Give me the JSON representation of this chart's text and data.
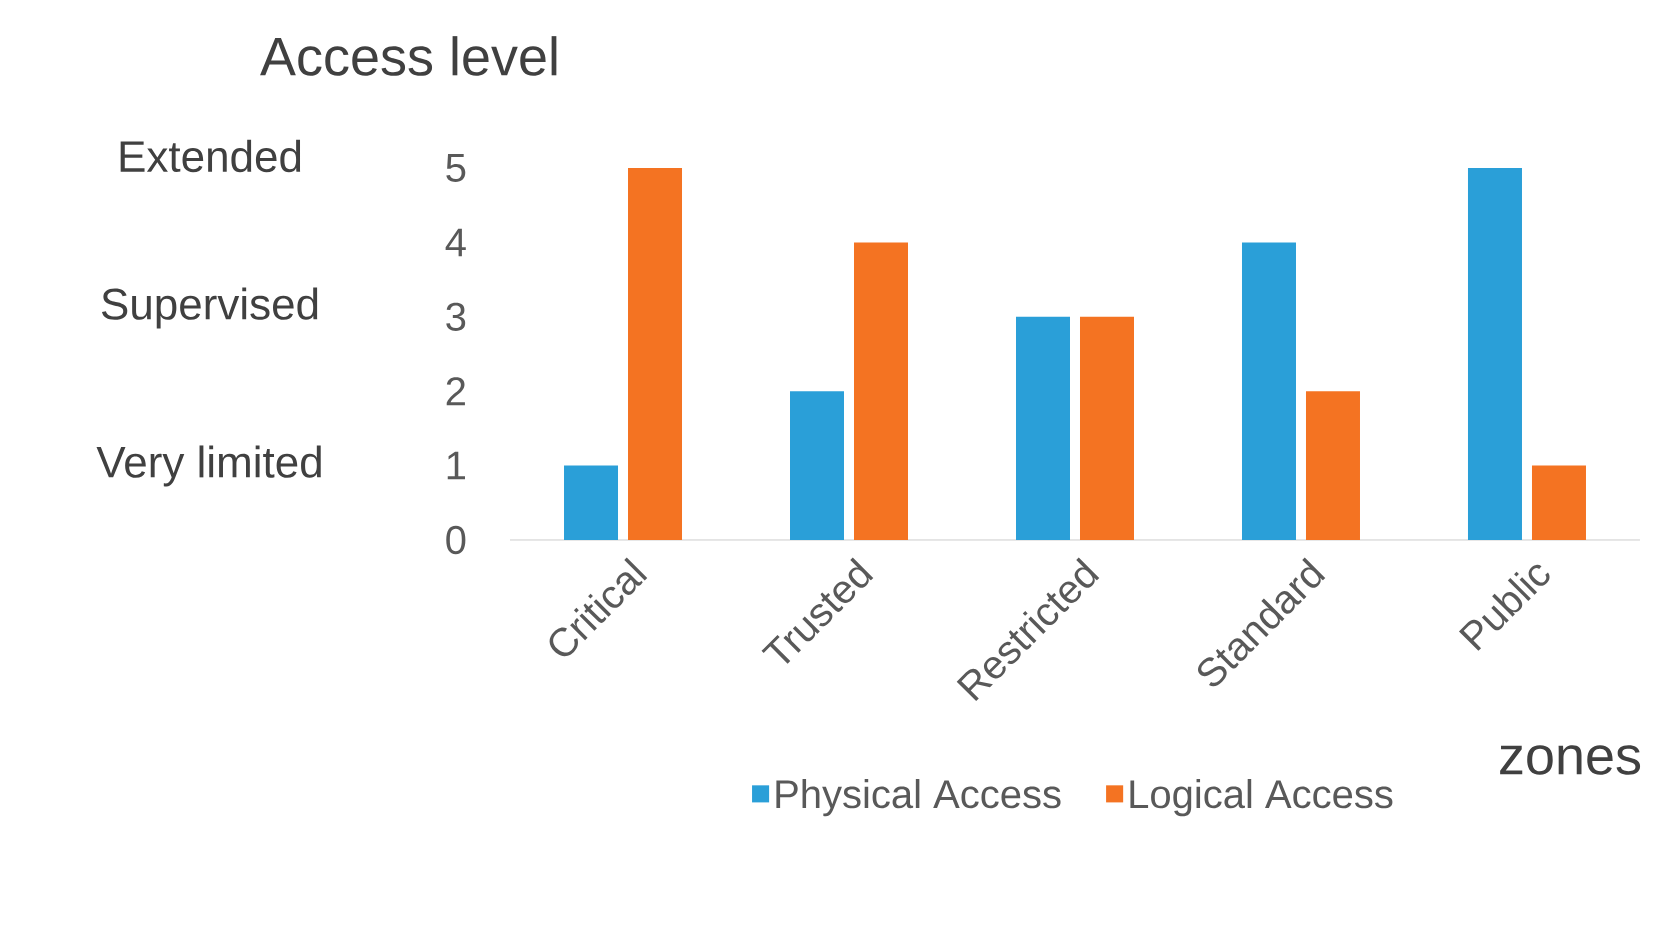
{
  "chart_data": {
    "type": "bar",
    "xlabel": "zones",
    "ylabel": "Access level",
    "categories": [
      "Critical",
      "Trusted",
      "Restricted",
      "Standard",
      "Public"
    ],
    "series": [
      {
        "name": "Physical Access",
        "color": "#2a9fd8",
        "values": [
          1,
          2,
          3,
          4,
          5
        ]
      },
      {
        "name": "Logical Access",
        "color": "#f47322",
        "values": [
          5,
          4,
          3,
          2,
          1
        ]
      }
    ],
    "ylim": [
      0,
      5
    ],
    "yticks": [
      0,
      1,
      2,
      3,
      4,
      5
    ],
    "grid": false,
    "legend": "bottom",
    "annotations": [
      "Extended",
      "Supervised",
      "Very limited"
    ]
  }
}
